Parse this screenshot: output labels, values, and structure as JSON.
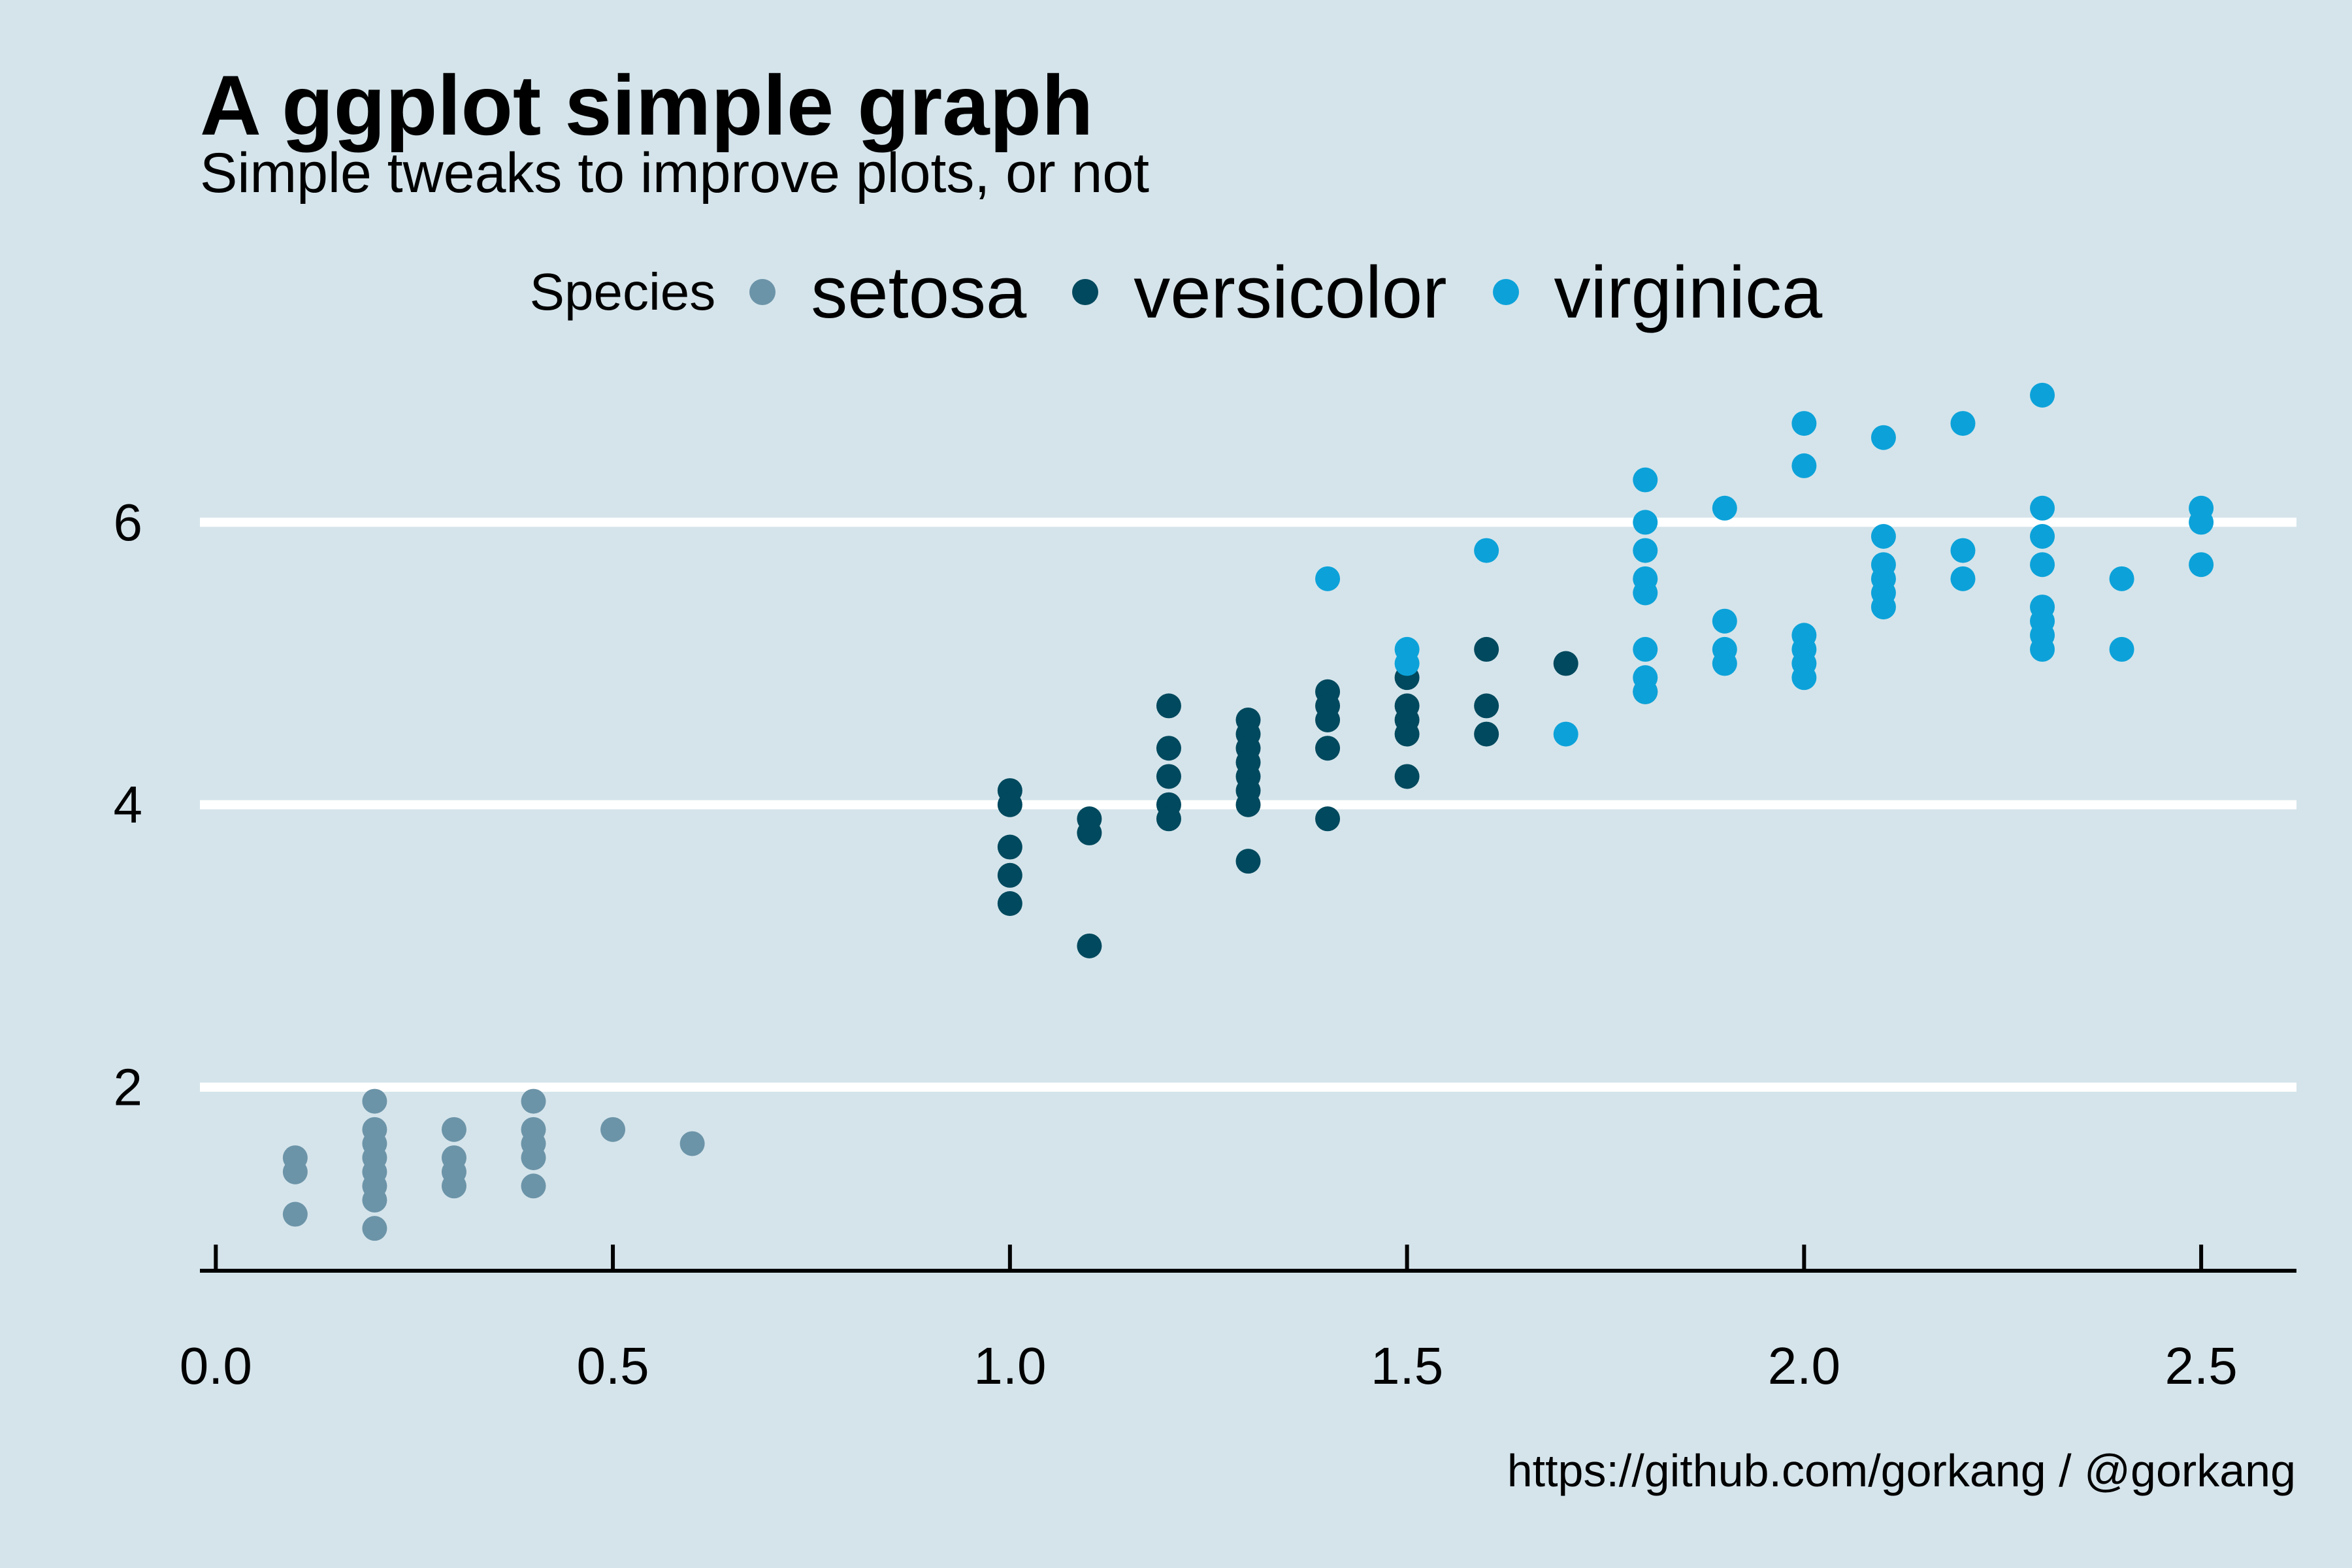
{
  "chart_data": {
    "type": "scatter",
    "title": "A ggplot simple graph",
    "subtitle": "Simple tweaks to improve plots, or not",
    "caption": "https://github.com/gorkang / @gorkang",
    "legend_title": "Species",
    "legend_position": "top",
    "xlabel": "",
    "ylabel": "",
    "xlim": [
      -0.02,
      2.62
    ],
    "ylim": [
      0.7,
      7.2
    ],
    "x_ticks": [
      "0.0",
      "0.5",
      "1.0",
      "1.5",
      "2.0",
      "2.5"
    ],
    "y_ticks": [
      "2",
      "4",
      "6"
    ],
    "grid": "major horizontal lines only",
    "background_color": "#d5e4eb",
    "series": [
      {
        "name": "setosa",
        "color": "#6c94a8",
        "points": [
          [
            0.1,
            1.5
          ],
          [
            0.1,
            1.4
          ],
          [
            0.1,
            1.1
          ],
          [
            0.2,
            1.9
          ],
          [
            0.2,
            1.7
          ],
          [
            0.2,
            1.6
          ],
          [
            0.2,
            1.5
          ],
          [
            0.2,
            1.4
          ],
          [
            0.2,
            1.3
          ],
          [
            0.2,
            1.2
          ],
          [
            0.2,
            1.0
          ],
          [
            0.3,
            1.7
          ],
          [
            0.3,
            1.5
          ],
          [
            0.3,
            1.4
          ],
          [
            0.3,
            1.3
          ],
          [
            0.4,
            1.9
          ],
          [
            0.4,
            1.7
          ],
          [
            0.4,
            1.6
          ],
          [
            0.4,
            1.5
          ],
          [
            0.4,
            1.3
          ],
          [
            0.5,
            1.7
          ],
          [
            0.6,
            1.6
          ]
        ]
      },
      {
        "name": "versicolor",
        "color": "#00495e",
        "points": [
          [
            1.0,
            4.1
          ],
          [
            1.0,
            4.0
          ],
          [
            1.0,
            3.7
          ],
          [
            1.0,
            3.5
          ],
          [
            1.0,
            3.3
          ],
          [
            1.1,
            3.9
          ],
          [
            1.1,
            3.8
          ],
          [
            1.1,
            3.0
          ],
          [
            1.2,
            4.7
          ],
          [
            1.2,
            4.4
          ],
          [
            1.2,
            4.2
          ],
          [
            1.2,
            4.0
          ],
          [
            1.2,
            3.9
          ],
          [
            1.3,
            4.6
          ],
          [
            1.3,
            4.5
          ],
          [
            1.3,
            4.4
          ],
          [
            1.3,
            4.3
          ],
          [
            1.3,
            4.2
          ],
          [
            1.3,
            4.1
          ],
          [
            1.3,
            4.0
          ],
          [
            1.3,
            3.6
          ],
          [
            1.4,
            4.8
          ],
          [
            1.4,
            4.7
          ],
          [
            1.4,
            4.6
          ],
          [
            1.4,
            4.4
          ],
          [
            1.4,
            3.9
          ],
          [
            1.5,
            4.9
          ],
          [
            1.5,
            4.7
          ],
          [
            1.5,
            4.6
          ],
          [
            1.5,
            4.5
          ],
          [
            1.5,
            4.2
          ],
          [
            1.6,
            5.1
          ],
          [
            1.6,
            4.7
          ],
          [
            1.6,
            4.5
          ],
          [
            1.7,
            5.0
          ],
          [
            1.8,
            4.8
          ]
        ]
      },
      {
        "name": "virginica",
        "color": "#0ca2d9",
        "points": [
          [
            1.4,
            5.6
          ],
          [
            1.5,
            5.1
          ],
          [
            1.5,
            5.0
          ],
          [
            1.6,
            5.8
          ],
          [
            1.7,
            4.5
          ],
          [
            1.8,
            6.3
          ],
          [
            1.8,
            6.0
          ],
          [
            1.8,
            5.8
          ],
          [
            1.8,
            5.6
          ],
          [
            1.8,
            5.5
          ],
          [
            1.8,
            5.1
          ],
          [
            1.8,
            4.9
          ],
          [
            1.8,
            4.8
          ],
          [
            1.9,
            6.1
          ],
          [
            1.9,
            5.3
          ],
          [
            1.9,
            5.1
          ],
          [
            1.9,
            5.0
          ],
          [
            2.0,
            6.7
          ],
          [
            2.0,
            6.4
          ],
          [
            2.0,
            5.2
          ],
          [
            2.0,
            5.1
          ],
          [
            2.0,
            5.0
          ],
          [
            2.0,
            4.9
          ],
          [
            2.1,
            6.6
          ],
          [
            2.1,
            5.9
          ],
          [
            2.1,
            5.7
          ],
          [
            2.1,
            5.6
          ],
          [
            2.1,
            5.5
          ],
          [
            2.1,
            5.4
          ],
          [
            2.2,
            6.7
          ],
          [
            2.2,
            5.8
          ],
          [
            2.2,
            5.6
          ],
          [
            2.3,
            6.9
          ],
          [
            2.3,
            6.1
          ],
          [
            2.3,
            5.9
          ],
          [
            2.3,
            5.7
          ],
          [
            2.3,
            5.4
          ],
          [
            2.3,
            5.3
          ],
          [
            2.3,
            5.2
          ],
          [
            2.3,
            5.1
          ],
          [
            2.4,
            5.6
          ],
          [
            2.4,
            5.1
          ],
          [
            2.5,
            6.1
          ],
          [
            2.5,
            6.0
          ],
          [
            2.5,
            5.7
          ]
        ]
      }
    ]
  }
}
